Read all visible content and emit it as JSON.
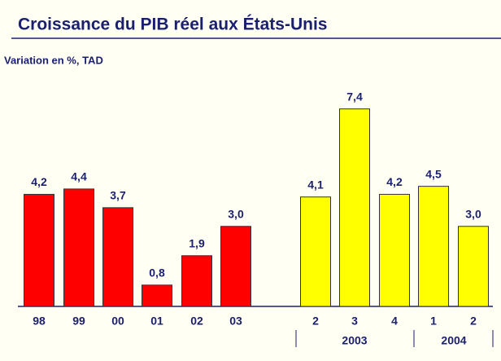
{
  "chart_data": {
    "type": "bar",
    "title": "Croissance du PIB réel aux États-Unis",
    "subtitle": "Variation en %, TAD",
    "categories": [
      "98",
      "99",
      "00",
      "01",
      "02",
      "03",
      "2",
      "3",
      "4",
      "1",
      "2"
    ],
    "values": [
      4.2,
      4.4,
      3.7,
      0.8,
      1.9,
      3.0,
      4.1,
      7.4,
      4.2,
      4.5,
      3.0
    ],
    "value_labels": [
      "4,2",
      "4,4",
      "3,7",
      "0,8",
      "1,9",
      "3,0",
      "4,1",
      "7,4",
      "4,2",
      "4,5",
      "3,0"
    ],
    "colors": [
      "#ff0000",
      "#ff0000",
      "#ff0000",
      "#ff0000",
      "#ff0000",
      "#ff0000",
      "#ffff00",
      "#ffff00",
      "#ffff00",
      "#ffff00",
      "#ffff00"
    ],
    "group_labels": [
      "2003",
      "2004"
    ],
    "ylim": [
      0,
      8
    ]
  }
}
